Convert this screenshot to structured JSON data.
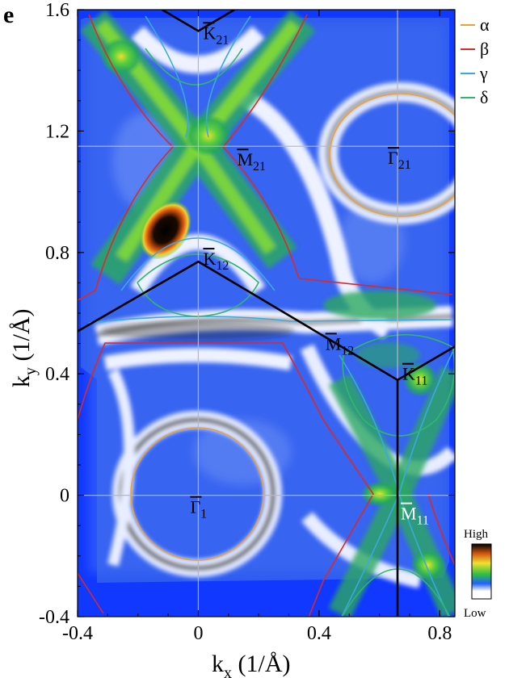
{
  "chart_data": {
    "type": "heatmap",
    "panel_label": "e",
    "xlabel_main": "k",
    "xlabel_sub": "x",
    "xlabel_unit": " (1/Å)",
    "ylabel_main": "k",
    "ylabel_sub": "y",
    "ylabel_unit": " (1/Å)",
    "xlim": [
      -0.4,
      0.85
    ],
    "ylim": [
      -0.4,
      1.6
    ],
    "xticks": [
      {
        "value": -0.4,
        "label": "-0.4"
      },
      {
        "value": 0,
        "label": "0"
      },
      {
        "value": 0.4,
        "label": "0.4"
      },
      {
        "value": 0.8,
        "label": "0.8"
      }
    ],
    "yticks": [
      {
        "value": -0.4,
        "label": "-0.4"
      },
      {
        "value": 0,
        "label": "0"
      },
      {
        "value": 0.4,
        "label": "0.4"
      },
      {
        "value": 0.8,
        "label": "0.8"
      },
      {
        "value": 1.2,
        "label": "1.2"
      },
      {
        "value": 1.6,
        "label": "1.6"
      }
    ],
    "grid_lines": {
      "x": [
        0,
        0.66
      ],
      "y": [
        0,
        1.15
      ]
    },
    "high_symmetry_points": [
      {
        "base": "Γ",
        "sub": "1",
        "x": 0,
        "y": 0,
        "color": "#000000"
      },
      {
        "base": "Γ",
        "sub": "21",
        "x": 0.66,
        "y": 1.15,
        "color": "#000000"
      },
      {
        "base": "K",
        "sub": "21",
        "x": 0,
        "y": 1.53,
        "color": "#000000"
      },
      {
        "base": "K",
        "sub": "12",
        "x": 0,
        "y": 0.77,
        "color": "#000000"
      },
      {
        "base": "K",
        "sub": "11",
        "x": 0.66,
        "y": 0.38,
        "color": "#000000"
      },
      {
        "base": "M",
        "sub": "21",
        "x": 0,
        "y": 1.15,
        "color": "#000000"
      },
      {
        "base": "M",
        "sub": "12",
        "x": 0.33,
        "y": 0.575,
        "color": "#000000"
      },
      {
        "base": "M",
        "sub": "11",
        "x": 0.66,
        "y": 0,
        "color": "#ffffff"
      }
    ],
    "brillouin_zone": [
      [
        [
          -0.4,
          0.54
        ],
        [
          0,
          0.77
        ],
        [
          0.66,
          0.38
        ],
        [
          0.85,
          0.49
        ]
      ],
      [
        [
          0.66,
          0.38
        ],
        [
          0.66,
          -0.4
        ]
      ],
      [
        [
          -0.12,
          1.6
        ],
        [
          0,
          1.53
        ],
        [
          0.12,
          1.6
        ]
      ]
    ],
    "series": [
      {
        "name": "α",
        "color": "#e8a23a"
      },
      {
        "name": "β",
        "color": "#d92a2a"
      },
      {
        "name": "γ",
        "color": "#3aa9e0"
      },
      {
        "name": "δ",
        "color": "#33b56e"
      }
    ],
    "legend_position": "top-right",
    "colorbar": {
      "high_label": "High",
      "low_label": "Low"
    }
  }
}
